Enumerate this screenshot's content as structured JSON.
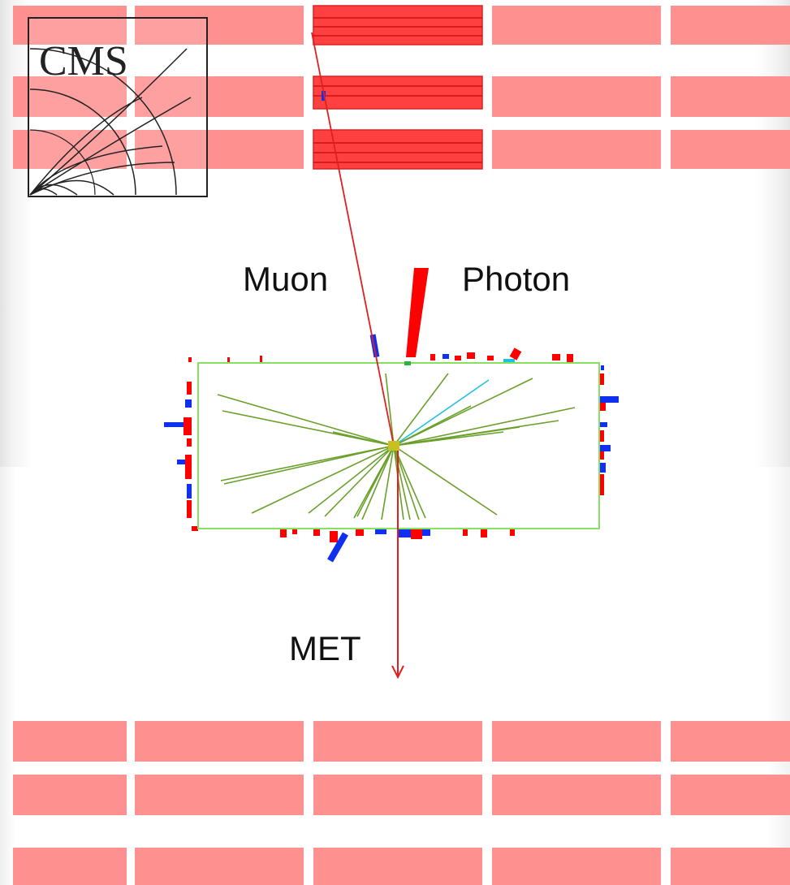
{
  "logo": {
    "text": "CMS"
  },
  "labels": {
    "muon": "Muon",
    "photon": "Photon",
    "met": "MET"
  },
  "colors": {
    "muon_chamber": "#ff9090",
    "muon_chamber_hit": "#ff4040",
    "track": "#6aa02a",
    "ecal_deposit": "#ff0000",
    "hcal_deposit": "#1030f0",
    "tracker_outline": "#88e060",
    "muon_track": "#e02020",
    "met_arrow": "#e02020"
  }
}
